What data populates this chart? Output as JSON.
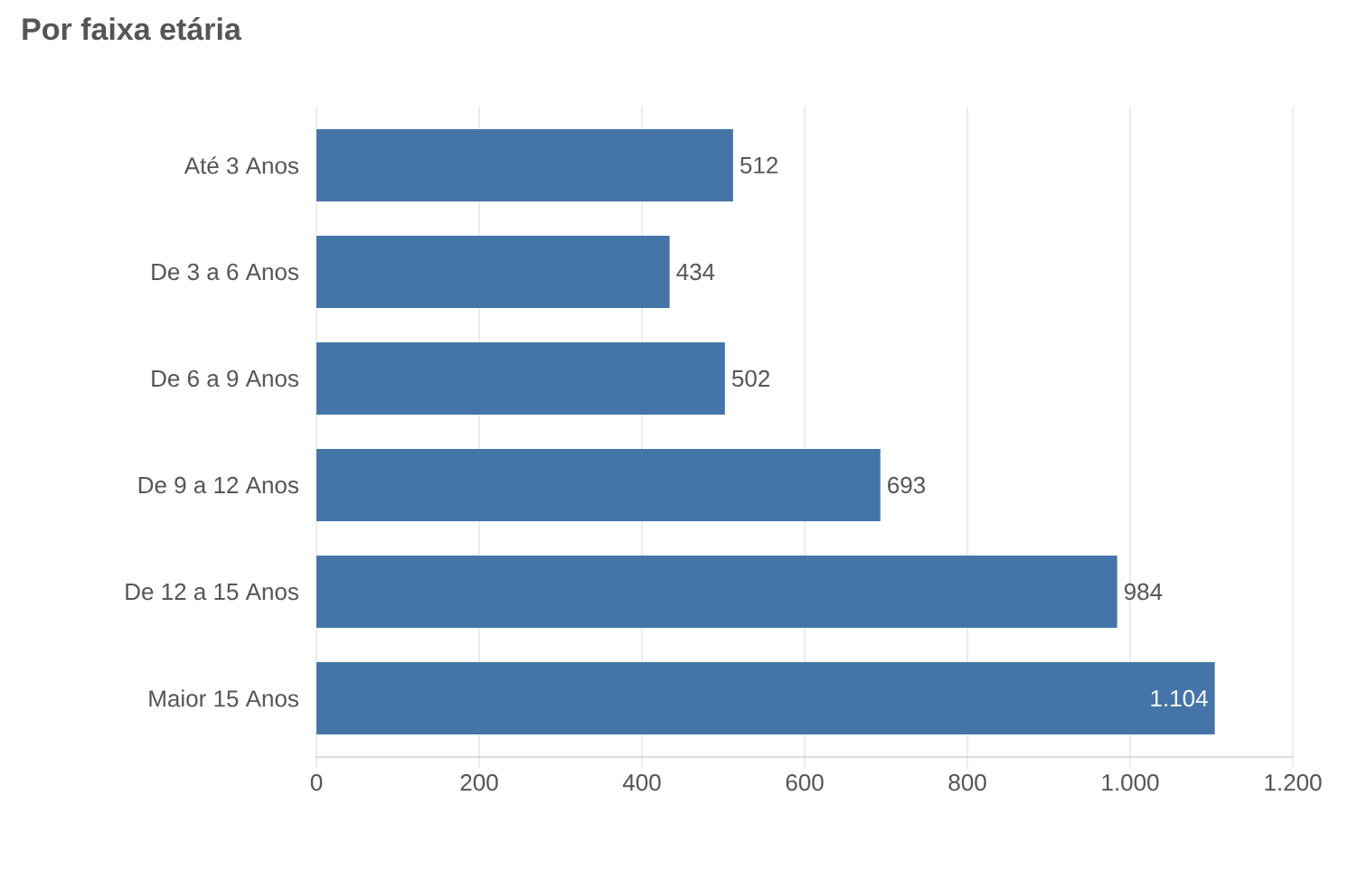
{
  "chart_data": {
    "type": "bar",
    "orientation": "horizontal",
    "title": "Por faixa etária",
    "categories": [
      "Até 3 Anos",
      "De 3 a 6 Anos",
      "De 6 a 9 Anos",
      "De 9 a 12 Anos",
      "De 12 a 15 Anos",
      "Maior 15 Anos"
    ],
    "values": [
      512,
      434,
      502,
      693,
      984,
      1104
    ],
    "value_labels": [
      "512",
      "434",
      "502",
      "693",
      "984",
      "1.104"
    ],
    "color": "#4575a8",
    "xlim": [
      0,
      1200
    ],
    "xticks": [
      0,
      200,
      400,
      600,
      800,
      {
        "value": 1000,
        "label": "1.000"
      },
      {
        "value": 1200,
        "label": "1.200"
      }
    ],
    "grid": "x"
  }
}
